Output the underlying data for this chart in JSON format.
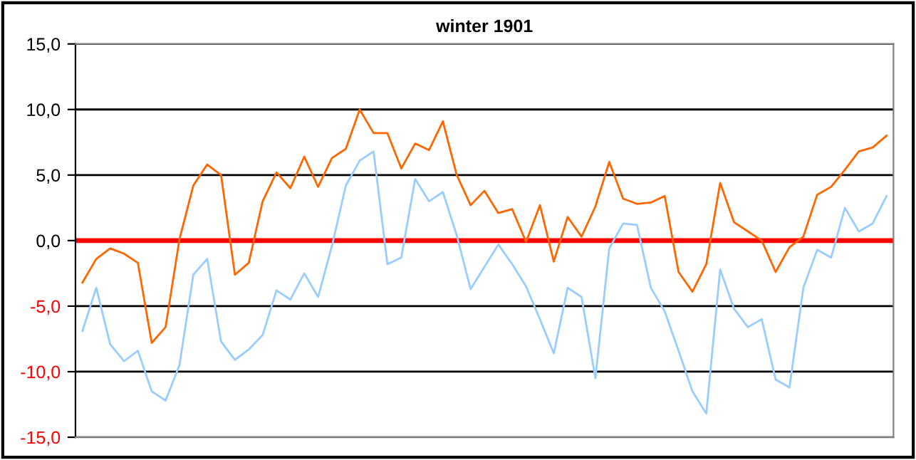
{
  "chart_data": {
    "type": "line",
    "title": "winter 1901",
    "categories": [
      null,
      null,
      null,
      null,
      null,
      null,
      null,
      null,
      null,
      null,
      null,
      null,
      null,
      null,
      null,
      null,
      null,
      null,
      null,
      null,
      null,
      null,
      null,
      null,
      null,
      null,
      null,
      null,
      null,
      null,
      null,
      null,
      null,
      null,
      null,
      null,
      null,
      null,
      null,
      null,
      null,
      null,
      null,
      null,
      null,
      null,
      null,
      null,
      null,
      null,
      null,
      null,
      null,
      null,
      null,
      null,
      null,
      null,
      null
    ],
    "series": [
      {
        "color": "#ff6600",
        "values": [
          -3.2,
          -1.4,
          -0.6,
          -1.0,
          -1.7,
          -7.8,
          -6.6,
          0.1,
          4.2,
          5.8,
          5.0,
          -2.6,
          -1.7,
          3.0,
          5.2,
          4.0,
          6.4,
          4.1,
          6.3,
          7.0,
          10.0,
          8.2,
          8.2,
          5.5,
          7.4,
          6.9,
          9.1,
          5.0,
          2.7,
          3.8,
          2.1,
          2.4,
          -0.1,
          2.7,
          -1.6,
          1.8,
          0.3,
          2.6,
          6.0,
          3.2,
          2.8,
          2.9,
          3.4,
          -2.4,
          -3.9,
          -1.8,
          4.4,
          1.4,
          0.7,
          0.0,
          -2.4,
          -0.5,
          0.3,
          3.5,
          4.1,
          5.4,
          6.8,
          7.1,
          8.0
        ]
      },
      {
        "color": "#99ccff",
        "values": [
          -6.9,
          -3.6,
          -7.9,
          -9.2,
          -8.4,
          -11.5,
          -12.2,
          -9.5,
          -2.6,
          -1.4,
          -7.7,
          -9.1,
          -8.3,
          -7.2,
          -3.8,
          -4.5,
          -2.5,
          -4.3,
          -0.4,
          4.2,
          6.1,
          6.8,
          -1.8,
          -1.3,
          4.7,
          3.0,
          3.7,
          0.4,
          -3.7,
          -2.0,
          -0.3,
          -1.8,
          -3.5,
          -6.0,
          -8.6,
          -3.6,
          -4.3,
          -10.5,
          -0.6,
          1.3,
          1.2,
          -3.6,
          -5.4,
          -8.4,
          -11.5,
          -13.2,
          -2.2,
          -5.2,
          -6.6,
          -6.0,
          -10.6,
          -11.2,
          -3.6,
          -0.7,
          -1.3,
          2.5,
          0.7,
          1.3,
          3.4
        ]
      }
    ],
    "ylim": [
      -15,
      15
    ],
    "yticks": [
      {
        "value": -15,
        "label": "-15,0"
      },
      {
        "value": -10,
        "label": "-10,0"
      },
      {
        "value": -5,
        "label": "-5,0"
      },
      {
        "value": 0,
        "label": "0,0"
      },
      {
        "value": 5,
        "label": "5,0"
      },
      {
        "value": 10,
        "label": "10,0"
      },
      {
        "value": 15,
        "label": "15,0"
      }
    ],
    "tick_labels": "y",
    "grid": "y",
    "ref_lines": [
      {
        "axis": "y",
        "value": 0,
        "color": "#ff0000"
      }
    ]
  }
}
